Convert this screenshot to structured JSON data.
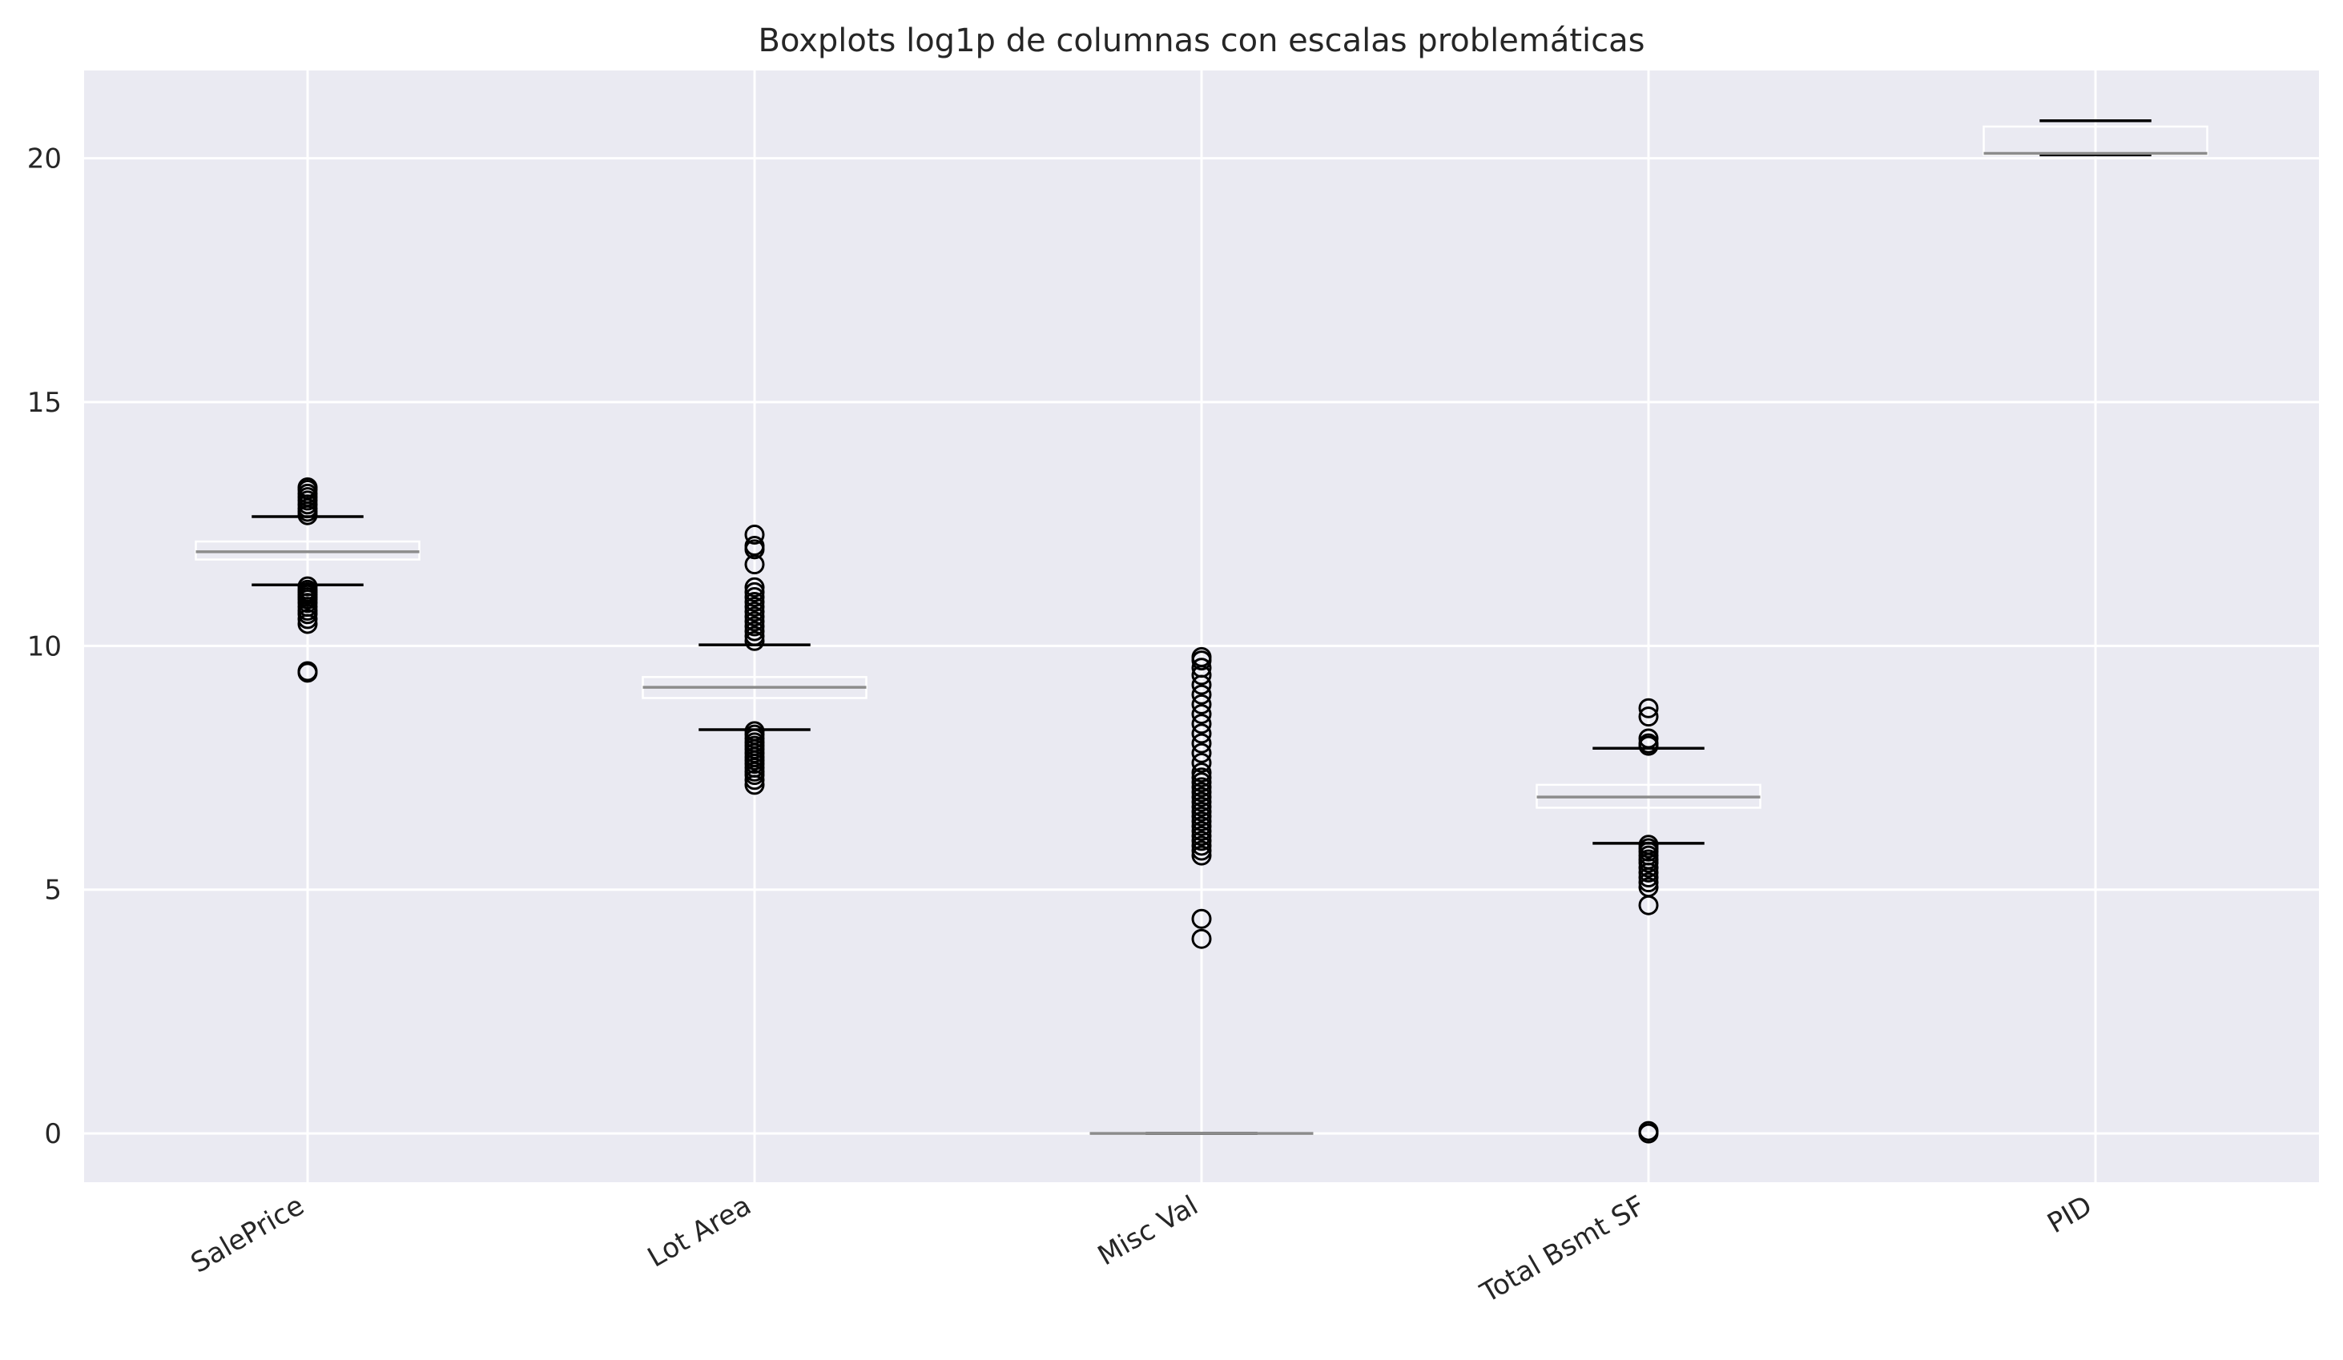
{
  "chart_data": {
    "type": "boxplot",
    "title": "Boxplots log1p de columnas con escalas problemáticas",
    "xlabel": "",
    "ylabel": "",
    "ylim": [
      -1.0,
      21.8
    ],
    "yticks": [
      0,
      5,
      10,
      15,
      20
    ],
    "grid": true,
    "categories": [
      "SalePrice",
      "Lot Area",
      "Misc Val",
      "Total Bsmt SF",
      "PID"
    ],
    "boxes": [
      {
        "label": "SalePrice",
        "whisker_low": 11.25,
        "q1": 11.77,
        "median": 11.93,
        "q3": 12.14,
        "whisker_high": 12.65,
        "outliers": [
          13.25,
          13.2,
          13.12,
          13.05,
          12.98,
          12.9,
          12.82,
          12.75,
          12.68,
          11.22,
          11.15,
          11.1,
          11.05,
          11.0,
          10.95,
          10.88,
          10.8,
          10.72,
          10.65,
          10.55,
          10.45,
          9.48,
          9.45
        ]
      },
      {
        "label": "Lot Area",
        "whisker_low": 8.28,
        "q1": 8.93,
        "median": 9.15,
        "q3": 9.36,
        "whisker_high": 10.02,
        "outliers": [
          12.28,
          12.05,
          11.98,
          11.67,
          11.2,
          11.1,
          11.0,
          10.9,
          10.8,
          10.7,
          10.6,
          10.5,
          10.4,
          10.3,
          10.2,
          10.1,
          8.25,
          8.18,
          8.1,
          8.02,
          7.95,
          7.88,
          7.8,
          7.72,
          7.65,
          7.58,
          7.5,
          7.42,
          7.35,
          7.25,
          7.15
        ]
      },
      {
        "label": "Misc Val",
        "whisker_low": 0.0,
        "q1": 0.0,
        "median": 0.0,
        "q3": 0.0,
        "whisker_high": 0.0,
        "outliers": [
          9.77,
          9.7,
          9.55,
          9.4,
          9.2,
          9.0,
          8.8,
          8.6,
          8.4,
          8.2,
          8.0,
          7.8,
          7.6,
          7.4,
          7.3,
          7.2,
          7.1,
          7.0,
          6.9,
          6.8,
          6.7,
          6.6,
          6.5,
          6.4,
          6.3,
          6.2,
          6.1,
          6.0,
          5.9,
          5.8,
          5.7,
          4.4,
          3.99
        ]
      },
      {
        "label": "Total Bsmt SF",
        "whisker_low": 5.95,
        "q1": 6.68,
        "median": 6.9,
        "q3": 7.15,
        "whisker_high": 7.9,
        "outliers": [
          8.72,
          8.55,
          8.1,
          8.0,
          7.95,
          5.92,
          5.85,
          5.78,
          5.7,
          5.62,
          5.55,
          5.45,
          5.35,
          5.25,
          5.15,
          5.05,
          4.68,
          0.05,
          0.0
        ]
      },
      {
        "label": "PID",
        "whisker_low": 20.07,
        "q1": 20.07,
        "median": 20.1,
        "q3": 20.65,
        "whisker_high": 20.77,
        "outliers": []
      }
    ],
    "colors": {
      "background": "#eaeaf2",
      "grid": "#ffffff",
      "box_edge": "#ffffff",
      "median": "#8c8c8c",
      "whisker_cap": "#000000",
      "outlier_edge": "#000000"
    }
  }
}
